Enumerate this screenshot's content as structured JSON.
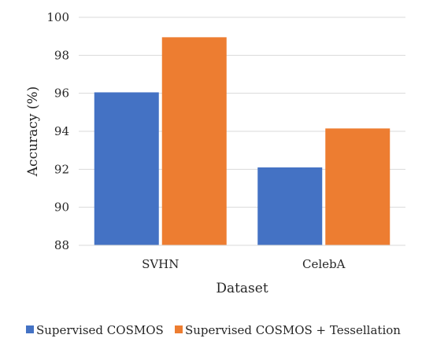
{
  "chart_data": {
    "type": "bar",
    "categories": [
      "SVHN",
      "CelebA"
    ],
    "series": [
      {
        "name": "Supervised COSMOS",
        "color": "#4472C4",
        "values": [
          96.05,
          92.1
        ]
      },
      {
        "name": "Supervised COSMOS + Tessellation",
        "color": "#ED7D31",
        "values": [
          98.95,
          94.15
        ]
      }
    ],
    "xlabel": "Dataset",
    "ylabel": "Accuracy (%)",
    "ylim": [
      88,
      100
    ],
    "yticks": [
      88,
      90,
      92,
      94,
      96,
      98,
      100
    ],
    "grid": true,
    "legend_position": "bottom"
  }
}
